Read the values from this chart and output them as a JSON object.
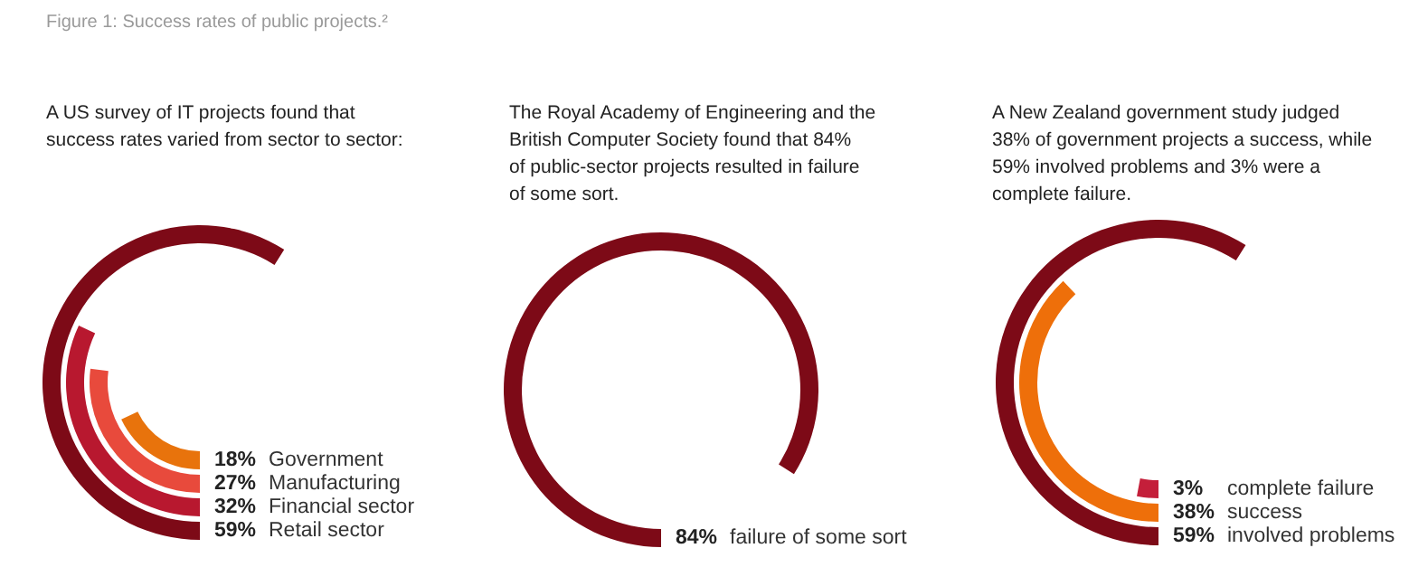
{
  "chart_data": [
    {
      "type": "other",
      "title": "Figure 1: Success rates of public projects.²",
      "subtitle": "A US survey of IT projects found that\nsuccess rates varied from sector to sector:",
      "categories": [
        "Government",
        "Manufacturing",
        "Financial sector",
        "Retail sector"
      ],
      "values": [
        18,
        27,
        32,
        59
      ],
      "colors": [
        "#e8730c",
        "#e84a3c",
        "#b8182f",
        "#7d0a17"
      ],
      "value_labels": [
        "18%",
        "27%",
        "32%",
        "59%"
      ]
    },
    {
      "type": "other",
      "subtitle": "The Royal Academy of Engineering and the\nBritish Computer Society found that 84%\nof public-sector projects resulted in failure\nof some sort.",
      "categories": [
        "failure of some sort"
      ],
      "values": [
        84
      ],
      "colors": [
        "#7d0a17"
      ],
      "value_labels": [
        "84%"
      ]
    },
    {
      "type": "other",
      "subtitle": "A New Zealand government study judged\n38% of government projects a success, while\n59% involved problems and 3% were a\ncomplete failure.",
      "categories": [
        "complete failure",
        "success",
        "involved problems"
      ],
      "values": [
        3,
        38,
        59
      ],
      "colors": [
        "#c41f3a",
        "#ee6f0a",
        "#7d0a17"
      ],
      "value_labels": [
        "3%",
        "38%",
        "59%"
      ]
    }
  ]
}
